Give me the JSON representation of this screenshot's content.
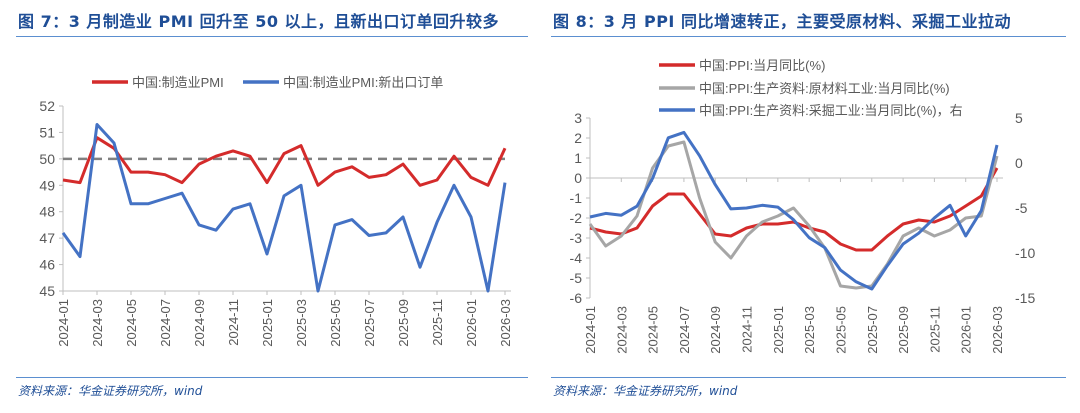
{
  "chart_data": [
    {
      "type": "line",
      "title": "图 7：3 月制造业 PMI 回升至 50 以上，且新出口订单回升较多",
      "source": "资料来源：华金证券研究所，wind",
      "x": [
        "2024-01",
        "2024-02",
        "2024-03",
        "2024-04",
        "2024-05",
        "2024-06",
        "2024-07",
        "2024-08",
        "2024-09",
        "2024-10",
        "2024-11",
        "2024-12",
        "2025-01",
        "2025-02",
        "2025-03",
        "2025-04",
        "2025-05",
        "2025-06",
        "2025-07",
        "2025-08",
        "2025-09",
        "2025-10",
        "2025-11",
        "2025-12",
        "2026-01",
        "2026-02",
        "2026-03"
      ],
      "x_tick_labels": [
        "2024-01",
        "2024-03",
        "2024-05",
        "2024-07",
        "2024-09",
        "2024-11",
        "2025-01",
        "2025-03",
        "2025-05",
        "2025-07",
        "2025-09",
        "2025-11",
        "2026-01",
        "2026-03"
      ],
      "ylim": [
        45,
        52
      ],
      "y_ticks": [
        45,
        46,
        47,
        48,
        49,
        50,
        51,
        52
      ],
      "reference_line": {
        "y": 50,
        "style": "dashed",
        "color": "#808080"
      },
      "legend": "top",
      "grid": false,
      "series": [
        {
          "name": "中国:制造业PMI",
          "color": "#d42b2b",
          "values": [
            49.2,
            49.1,
            50.8,
            50.4,
            49.5,
            49.5,
            49.4,
            49.1,
            49.8,
            50.1,
            50.3,
            50.1,
            49.1,
            50.2,
            50.5,
            49.0,
            49.5,
            49.7,
            49.3,
            49.4,
            49.8,
            49.0,
            49.2,
            50.1,
            49.3,
            49.0,
            50.4
          ]
        },
        {
          "name": "中国:制造业PMI:新出口订单",
          "color": "#4472c4",
          "values": [
            47.2,
            46.3,
            51.3,
            50.6,
            48.3,
            48.3,
            48.5,
            48.7,
            47.5,
            47.3,
            48.1,
            48.3,
            46.4,
            48.6,
            49.0,
            44.7,
            47.5,
            47.7,
            47.1,
            47.2,
            47.8,
            45.9,
            47.6,
            49.0,
            47.8,
            45.0,
            49.1
          ]
        }
      ]
    },
    {
      "type": "line",
      "title": "图 8：3 月 PPI 同比增速转正，主要受原材料、采掘工业拉动",
      "source": "资料来源：华金证券研究所，wind",
      "x": [
        "2024-01",
        "2024-02",
        "2024-03",
        "2024-04",
        "2024-05",
        "2024-06",
        "2024-07",
        "2024-08",
        "2024-09",
        "2024-10",
        "2024-11",
        "2024-12",
        "2025-01",
        "2025-02",
        "2025-03",
        "2025-04",
        "2025-05",
        "2025-06",
        "2025-07",
        "2025-08",
        "2025-09",
        "2025-10",
        "2025-11",
        "2025-12",
        "2026-01",
        "2026-02",
        "2026-03"
      ],
      "x_tick_labels": [
        "2024-01",
        "2024-03",
        "2024-05",
        "2024-07",
        "2024-09",
        "2024-11",
        "2025-01",
        "2025-03",
        "2025-05",
        "2025-07",
        "2025-09",
        "2025-11",
        "2026-01",
        "2026-03"
      ],
      "ylim": [
        -6,
        3
      ],
      "y_ticks": [
        -6,
        -5,
        -4,
        -3,
        -2,
        -1,
        0,
        1,
        2,
        3
      ],
      "y2lim": [
        -15,
        5
      ],
      "y2_ticks": [
        -15,
        -10,
        -5,
        0,
        5
      ],
      "legend": "top",
      "grid": false,
      "series": [
        {
          "name": "中国:PPI:当月同比(%)",
          "color": "#d42b2b",
          "axis": "left",
          "values": [
            -2.5,
            -2.7,
            -2.8,
            -2.5,
            -1.4,
            -0.8,
            -0.8,
            -1.8,
            -2.8,
            -2.9,
            -2.5,
            -2.3,
            -2.3,
            -2.2,
            -2.5,
            -2.7,
            -3.3,
            -3.6,
            -3.6,
            -2.9,
            -2.3,
            -2.1,
            -2.2,
            -1.9,
            -1.4,
            -0.9,
            0.5
          ]
        },
        {
          "name": "中国:PPI:生产资料:原材料工业:当月同比(%)",
          "color": "#a6a6a6",
          "axis": "left",
          "values": [
            -2.3,
            -3.4,
            -2.9,
            -1.9,
            0.5,
            1.6,
            1.8,
            -1.0,
            -3.2,
            -4.0,
            -2.9,
            -2.2,
            -1.9,
            -1.5,
            -2.4,
            -3.5,
            -5.4,
            -5.5,
            -5.4,
            -4.3,
            -2.9,
            -2.5,
            -2.9,
            -2.6,
            -2.0,
            -1.9,
            1.1
          ]
        },
        {
          "name": "中国:PPI:生产资料:采掘工业:当月同比(%)，右",
          "color": "#4472c4",
          "axis": "right",
          "values": [
            -6.0,
            -5.6,
            -5.8,
            -4.8,
            -1.7,
            2.8,
            3.4,
            0.8,
            -2.4,
            -5.1,
            -5.0,
            -4.7,
            -4.9,
            -6.3,
            -8.3,
            -9.4,
            -11.9,
            -13.2,
            -14.0,
            -11.4,
            -9.0,
            -7.8,
            -6.1,
            -4.7,
            -8.1,
            -5.3,
            2.0
          ]
        }
      ]
    }
  ]
}
